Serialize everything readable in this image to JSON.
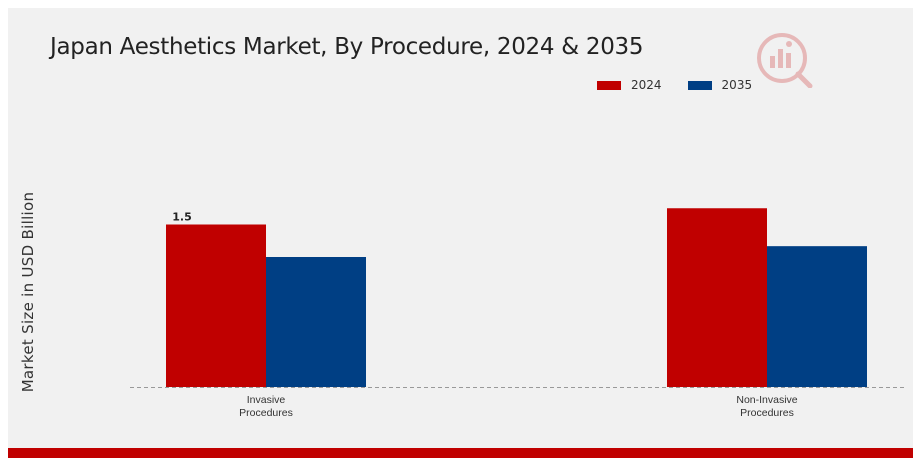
{
  "title": "Japan Aesthetics Market, By Procedure, 2024 & 2035",
  "colors": {
    "series_2024": "#c00000",
    "series_2035": "#003f84",
    "accent": "#c00000"
  },
  "icons": {
    "logo": "brand-logo-icon"
  },
  "chart_data": {
    "type": "bar",
    "title": "Japan Aesthetics Market, By Procedure, 2024 & 2035",
    "xlabel": "",
    "ylabel": "Market Size in USD Billion",
    "categories": [
      "Invasive Procedures",
      "Non-Invasive Procedures"
    ],
    "category_lines": [
      [
        "Invasive",
        "Procedures"
      ],
      [
        "Non-Invasive",
        "Procedures"
      ]
    ],
    "series": [
      {
        "name": "2024",
        "values": [
          1.5,
          1.65
        ]
      },
      {
        "name": "2035",
        "values": [
          1.2,
          1.3
        ]
      }
    ],
    "data_labels": [
      {
        "series": 0,
        "category": 0,
        "text": "1.5"
      }
    ],
    "ylim": [
      0,
      2.4
    ],
    "grid": false,
    "legend": "top-right"
  }
}
